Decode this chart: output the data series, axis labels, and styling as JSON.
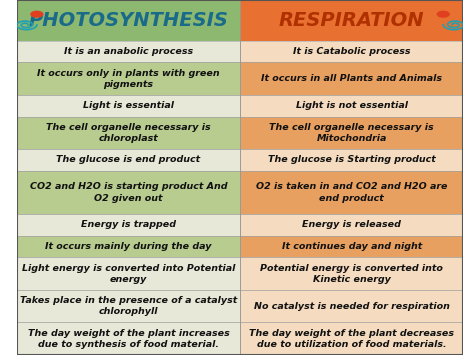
{
  "title_left": "PHOTOSYNTHESIS",
  "title_right": "RESPIRATION",
  "title_left_color": "#1a6b8a",
  "title_right_color": "#b03000",
  "header_bg_left": "#8db870",
  "header_bg_right": "#e87030",
  "bg_color": "#ffffff",
  "rows": [
    [
      "It is an anabolic process",
      "It is Catabolic process"
    ],
    [
      "It occurs only in plants with green\npigments",
      "It occurs in all Plants and Animals"
    ],
    [
      "Light is essential",
      "Light is not essential"
    ],
    [
      "The cell organelle necessary is\nchlоroplast",
      "The cell organelle necessary is\nMitochondria"
    ],
    [
      "The glucose is end product",
      "The glucose is Starting product"
    ],
    [
      "CO2 and H2O is starting product And\nO2 given out",
      "O2 is taken in and CO2 and H2O are\nend product"
    ],
    [
      "Energy is trapped",
      "Energy is released"
    ],
    [
      "It occurs mainly during the day",
      "It continues day and night"
    ],
    [
      "Light energy is converted into Potential\nenergy",
      "Potential energy is converted into\nKinetic energy"
    ],
    [
      "Takes place in the presence of a catalyst\nchlorophyll",
      "No catalyst is needed for respiration"
    ],
    [
      "The day weight of the plant increases\ndue to synthesis of food material.",
      "The day weight of the plant decreases\ndue to utilization of food materials."
    ]
  ],
  "row_colors_left": [
    "#e8e8d8",
    "#b8cc90",
    "#e8e8d8",
    "#b8cc90",
    "#e8e8d8",
    "#b8cc90",
    "#e8e8d8",
    "#b8cc90",
    "#e8e8d8",
    "#e8e8d8",
    "#e8e8d8"
  ],
  "row_colors_right": [
    "#f5dcc0",
    "#e8a060",
    "#f5dcc0",
    "#e8a060",
    "#f5dcc0",
    "#e8a060",
    "#f5dcc0",
    "#e8a060",
    "#f5dcc0",
    "#f5dcc0",
    "#f5dcc0"
  ],
  "text_color": "#111111",
  "font_size": 6.8,
  "header_font_size": 14,
  "figsize": [
    4.74,
    3.55
  ],
  "dpi": 100,
  "row_heights": [
    1,
    1.5,
    1,
    1.5,
    1,
    2,
    1,
    1,
    1.5,
    1.5,
    1.5
  ]
}
